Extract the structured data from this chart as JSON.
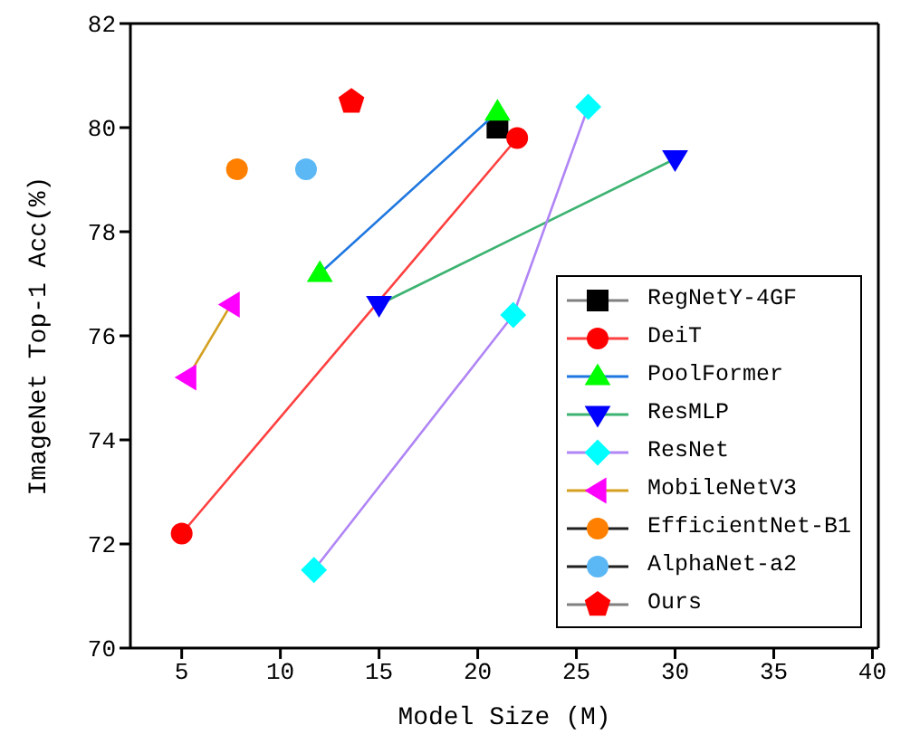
{
  "chart_data": {
    "type": "scatter",
    "xlabel": "Model Size (M)",
    "ylabel": "ImageNet Top-1 Acc(%)",
    "xlim": [
      2.4,
      40.3
    ],
    "xticks": [
      5,
      10,
      15,
      20,
      25,
      30,
      35,
      40
    ],
    "ylim": [
      70,
      82
    ],
    "yticks": [
      70,
      72,
      74,
      76,
      78,
      80,
      82
    ],
    "legend": "bottom right",
    "series": [
      {
        "name": "RegNetY-4GF",
        "marker": "square",
        "color": "#808080",
        "colors": [
          "#000000"
        ],
        "x": [
          21
        ],
        "values": [
          80.0
        ]
      },
      {
        "name": "DeiT",
        "type": "line",
        "marker": "circle",
        "color": "#ff4040",
        "colors": [
          "#ff0000",
          "#ff0000"
        ],
        "x": [
          5,
          22
        ],
        "values": [
          72.2,
          79.8
        ]
      },
      {
        "name": "PoolFormer",
        "type": "line",
        "marker": "triangle",
        "color": "#1f77e0",
        "colors": [
          "#00ff00",
          "#00ff00"
        ],
        "x": [
          12,
          21
        ],
        "values": [
          77.2,
          80.3
        ]
      },
      {
        "name": "ResMLP",
        "type": "line",
        "marker": "triangle-down",
        "color": "#3cb371",
        "colors": [
          "#0000ff",
          "#0000ff"
        ],
        "x": [
          15,
          30
        ],
        "values": [
          76.6,
          79.4
        ]
      },
      {
        "name": "ResNet",
        "type": "line",
        "marker": "diamond",
        "color": "#b085f5",
        "colors": [
          "#00ffff",
          "#00ffff",
          "#00ffff"
        ],
        "x": [
          11.7,
          21.8,
          25.6
        ],
        "values": [
          71.5,
          76.4,
          80.4
        ]
      },
      {
        "name": "MobileNetV3",
        "type": "line",
        "marker": "triangle-left",
        "color": "#d4a020",
        "colors": [
          "#ff00ff",
          "#ff00ff"
        ],
        "x": [
          5.3,
          7.5
        ],
        "values": [
          75.2,
          76.6
        ]
      },
      {
        "name": "EfficientNet-B1",
        "marker": "circle",
        "color": "#202020",
        "colors": [
          "#ff8000"
        ],
        "x": [
          7.8
        ],
        "values": [
          79.2
        ]
      },
      {
        "name": "AlphaNet-a2",
        "marker": "circle",
        "color": "#202020",
        "colors": [
          "#5bb8f5"
        ],
        "x": [
          11.3
        ],
        "values": [
          79.2
        ]
      },
      {
        "name": "Ours",
        "color": "#808080",
        "colors": [
          "#ff0000"
        ],
        "x": [
          13.6
        ],
        "values": [
          80.5
        ]
      }
    ]
  }
}
